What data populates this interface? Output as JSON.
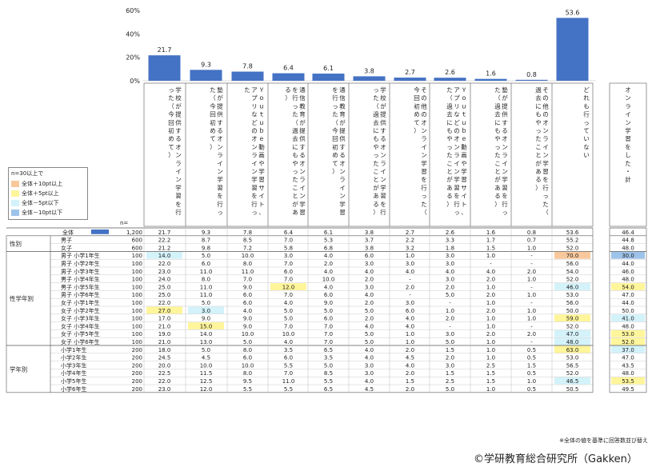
{
  "chart_data": {
    "type": "bar",
    "y_ticks": [
      "60%",
      "40%",
      "20%",
      "0%"
    ],
    "ylim": [
      0,
      60
    ],
    "categories": [
      "学校が提供するオンライン学習を行った（今回初めて）",
      "塾が提供するオンライン学習を行った（今回初めて）",
      "Ｙｏｕｔｕｂｅ動画や学習サイト、アプリなどのオンライン学習を行った",
      "通信教育が提供するオンライン学習を行った（過去にもやったことがある）",
      "通信教育が提供するオンライン学習を行った（今回初めて）",
      "学校が提供するオンライン学習を行った（過去にもやったことがある）",
      "その他のオンライン学習を行った（今回初めて）",
      "Ｙｏｕｔｕｂｅ動画や学習サイト、アプリなどのオンライン学習を行った（過去にもやったことがある）",
      "塾が提供するオンライン学習を行った（過去にもやったことがある）",
      "その他のオンライン学習を行った（過去にもやったことがある）",
      "どれも行っていない"
    ],
    "values": [
      21.7,
      9.3,
      7.8,
      6.4,
      6.1,
      3.8,
      2.7,
      2.6,
      1.6,
      0.8,
      53.6
    ],
    "value_labels": [
      "21.7",
      "9.3",
      "7.8",
      "6.4",
      "6.1",
      "3.8",
      "2.7",
      "2.6",
      "1.6",
      "0.8",
      "53.6"
    ],
    "total_column_header": "オンライン学習をした・計",
    "bar_color": "#4472c4"
  },
  "legend": {
    "title": "n=30以上で",
    "items": [
      {
        "label": "全体＋10pt以上",
        "color": "#f8c89c"
      },
      {
        "label": "全体＋5pt以上",
        "color": "#fff59a"
      },
      {
        "label": "全体－5pt以下",
        "color": "#d3f2fa"
      },
      {
        "label": "全体－10pt以下",
        "color": "#9ec3ea"
      }
    ]
  },
  "table": {
    "n_label": "n=",
    "total_row": {
      "label": "全体",
      "n": "1,200",
      "cells": [
        "21.7",
        "9.3",
        "7.8",
        "6.4",
        "6.1",
        "3.8",
        "2.7",
        "2.6",
        "1.6",
        "0.8",
        "53.6"
      ],
      "total": "46.4"
    },
    "groups": [
      {
        "name": "性別",
        "rows": [
          {
            "label": "男子",
            "n": "600",
            "cells": [
              "22.2",
              "8.7",
              "8.5",
              "7.0",
              "5.3",
              "3.7",
              "2.2",
              "3.3",
              "1.7",
              "0.7",
              "55.2"
            ],
            "total": "44.8",
            "hl": [
              null,
              null,
              null,
              null,
              null,
              null,
              null,
              null,
              null,
              null,
              null
            ],
            "thl": null
          },
          {
            "label": "女子",
            "n": "600",
            "cells": [
              "21.2",
              "9.8",
              "7.2",
              "5.8",
              "6.8",
              "3.8",
              "3.2",
              "1.8",
              "1.5",
              "1.0",
              "52.0"
            ],
            "total": "48.0",
            "hl": [
              null,
              null,
              null,
              null,
              null,
              null,
              null,
              null,
              null,
              null,
              null
            ],
            "thl": null
          }
        ]
      },
      {
        "name": "性学年別",
        "rows": [
          {
            "label": "男子 小学1年生",
            "n": "100",
            "cells": [
              "14.0",
              "5.0",
              "10.0",
              "3.0",
              "4.0",
              "6.0",
              "1.0",
              "3.0",
              "1.0",
              "-",
              "70.0"
            ],
            "total": "30.0",
            "hl": [
              "c",
              null,
              null,
              null,
              null,
              null,
              null,
              null,
              null,
              null,
              "o"
            ],
            "thl": "b"
          },
          {
            "label": "男子 小学2年生",
            "n": "100",
            "cells": [
              "22.0",
              "6.0",
              "8.0",
              "7.0",
              "2.0",
              "3.0",
              "3.0",
              "3.0",
              "-",
              "-",
              "56.0"
            ],
            "total": "44.0",
            "hl": [
              null,
              null,
              null,
              null,
              null,
              null,
              null,
              null,
              null,
              null,
              null
            ],
            "thl": null
          },
          {
            "label": "男子 小学3年生",
            "n": "100",
            "cells": [
              "23.0",
              "11.0",
              "11.0",
              "6.0",
              "4.0",
              "4.0",
              "4.0",
              "4.0",
              "4.0",
              "2.0",
              "54.0"
            ],
            "total": "46.0",
            "hl": [
              null,
              null,
              null,
              null,
              null,
              null,
              null,
              null,
              null,
              null,
              null
            ],
            "thl": null
          },
          {
            "label": "男子 小学4年生",
            "n": "100",
            "cells": [
              "24.0",
              "8.0",
              "7.0",
              "7.0",
              "10.0",
              "2.0",
              "-",
              "3.0",
              "2.0",
              "1.0",
              "52.0"
            ],
            "total": "48.0",
            "hl": [
              null,
              null,
              null,
              null,
              null,
              null,
              null,
              null,
              null,
              null,
              null
            ],
            "thl": null
          },
          {
            "label": "男子 小学5年生",
            "n": "100",
            "cells": [
              "25.0",
              "11.0",
              "9.0",
              "12.0",
              "4.0",
              "3.0",
              "2.0",
              "2.0",
              "1.0",
              "-",
              "46.0"
            ],
            "total": "54.0",
            "hl": [
              null,
              null,
              null,
              "y",
              null,
              null,
              null,
              null,
              null,
              null,
              "c"
            ],
            "thl": "y"
          },
          {
            "label": "男子 小学6年生",
            "n": "100",
            "cells": [
              "25.0",
              "11.0",
              "6.0",
              "7.0",
              "6.0",
              "4.0",
              "-",
              "5.0",
              "2.0",
              "1.0",
              "53.0"
            ],
            "total": "47.0",
            "hl": [
              null,
              null,
              null,
              null,
              null,
              null,
              null,
              null,
              null,
              null,
              null
            ],
            "thl": null
          },
          {
            "label": "女子 小学1年生",
            "n": "100",
            "cells": [
              "22.0",
              "5.0",
              "6.0",
              "4.0",
              "9.0",
              "2.0",
              "3.0",
              "-",
              "1.0",
              "-",
              "56.0"
            ],
            "total": "44.0",
            "hl": [
              null,
              null,
              null,
              null,
              null,
              null,
              null,
              null,
              null,
              null,
              null
            ],
            "thl": null
          },
          {
            "label": "女子 小学2年生",
            "n": "100",
            "cells": [
              "27.0",
              "3.0",
              "4.0",
              "5.0",
              "5.0",
              "5.0",
              "6.0",
              "1.0",
              "2.0",
              "1.0",
              "50.0"
            ],
            "total": "50.0",
            "hl": [
              "y",
              "c",
              null,
              null,
              null,
              null,
              null,
              null,
              null,
              null,
              null
            ],
            "thl": null
          },
          {
            "label": "女子 小学3年生",
            "n": "100",
            "cells": [
              "17.0",
              "9.0",
              "9.0",
              "5.0",
              "6.0",
              "2.0",
              "4.0",
              "2.0",
              "1.0",
              "1.0",
              "59.0"
            ],
            "total": "41.0",
            "hl": [
              null,
              null,
              null,
              null,
              null,
              null,
              null,
              null,
              null,
              null,
              "y"
            ],
            "thl": "c"
          },
          {
            "label": "女子 小学4年生",
            "n": "100",
            "cells": [
              "21.0",
              "15.0",
              "9.0",
              "7.0",
              "7.0",
              "4.0",
              "4.0",
              "-",
              "1.0",
              "-",
              "52.0"
            ],
            "total": "48.0",
            "hl": [
              null,
              "y",
              null,
              null,
              null,
              null,
              null,
              null,
              null,
              null,
              null
            ],
            "thl": null
          },
          {
            "label": "女子 小学5年生",
            "n": "100",
            "cells": [
              "19.0",
              "14.0",
              "10.0",
              "10.0",
              "7.0",
              "5.0",
              "1.0",
              "3.0",
              "2.0",
              "2.0",
              "47.0"
            ],
            "total": "53.0",
            "hl": [
              null,
              null,
              null,
              null,
              null,
              null,
              null,
              null,
              null,
              null,
              "c"
            ],
            "thl": "y"
          },
          {
            "label": "女子 小学6年生",
            "n": "100",
            "cells": [
              "21.0",
              "13.0",
              "5.0",
              "4.0",
              "7.0",
              "5.0",
              "1.0",
              "5.0",
              "1.0",
              "-",
              "48.0"
            ],
            "total": "52.0",
            "hl": [
              null,
              null,
              null,
              null,
              null,
              null,
              null,
              null,
              null,
              null,
              "c"
            ],
            "thl": "y"
          }
        ]
      },
      {
        "name": "学年別",
        "rows": [
          {
            "label": "小学1年生",
            "n": "200",
            "cells": [
              "18.0",
              "5.0",
              "8.0",
              "3.5",
              "6.5",
              "4.0",
              "2.0",
              "1.5",
              "1.0",
              "0.5",
              "63.0"
            ],
            "total": "37.0",
            "hl": [
              null,
              null,
              null,
              null,
              null,
              null,
              null,
              null,
              null,
              null,
              "y"
            ],
            "thl": "c"
          },
          {
            "label": "小学2年生",
            "n": "200",
            "cells": [
              "24.5",
              "4.5",
              "6.0",
              "6.0",
              "3.5",
              "4.0",
              "4.5",
              "2.0",
              "1.0",
              "0.5",
              "53.0"
            ],
            "total": "47.0",
            "hl": [
              null,
              null,
              null,
              null,
              null,
              null,
              null,
              null,
              null,
              null,
              null
            ],
            "thl": null
          },
          {
            "label": "小学3年生",
            "n": "200",
            "cells": [
              "20.0",
              "10.0",
              "10.0",
              "5.5",
              "5.0",
              "3.0",
              "4.0",
              "3.0",
              "2.5",
              "1.5",
              "56.5"
            ],
            "total": "43.5",
            "hl": [
              null,
              null,
              null,
              null,
              null,
              null,
              null,
              null,
              null,
              null,
              null
            ],
            "thl": null
          },
          {
            "label": "小学4年生",
            "n": "200",
            "cells": [
              "22.5",
              "11.5",
              "8.0",
              "7.0",
              "8.5",
              "3.0",
              "2.0",
              "1.5",
              "1.5",
              "0.5",
              "52.0"
            ],
            "total": "48.0",
            "hl": [
              null,
              null,
              null,
              null,
              null,
              null,
              null,
              null,
              null,
              null,
              null
            ],
            "thl": null
          },
          {
            "label": "小学5年生",
            "n": "200",
            "cells": [
              "22.0",
              "12.5",
              "9.5",
              "11.0",
              "5.5",
              "4.0",
              "1.5",
              "2.5",
              "1.5",
              "1.0",
              "46.5"
            ],
            "total": "53.5",
            "hl": [
              null,
              null,
              null,
              null,
              null,
              null,
              null,
              null,
              null,
              null,
              "c"
            ],
            "thl": "y"
          },
          {
            "label": "小学6年生",
            "n": "200",
            "cells": [
              "23.0",
              "12.0",
              "5.5",
              "5.5",
              "6.5",
              "4.5",
              "2.0",
              "5.0",
              "1.0",
              "0.5",
              "50.5"
            ],
            "total": "49.5",
            "hl": [
              null,
              null,
              null,
              null,
              null,
              null,
              null,
              null,
              null,
              null,
              null
            ],
            "thl": null
          }
        ]
      }
    ]
  },
  "footnote": "※全体の値を基準に回答数並び替え",
  "copyright": "©学研教育総合研究所（Gakken）"
}
